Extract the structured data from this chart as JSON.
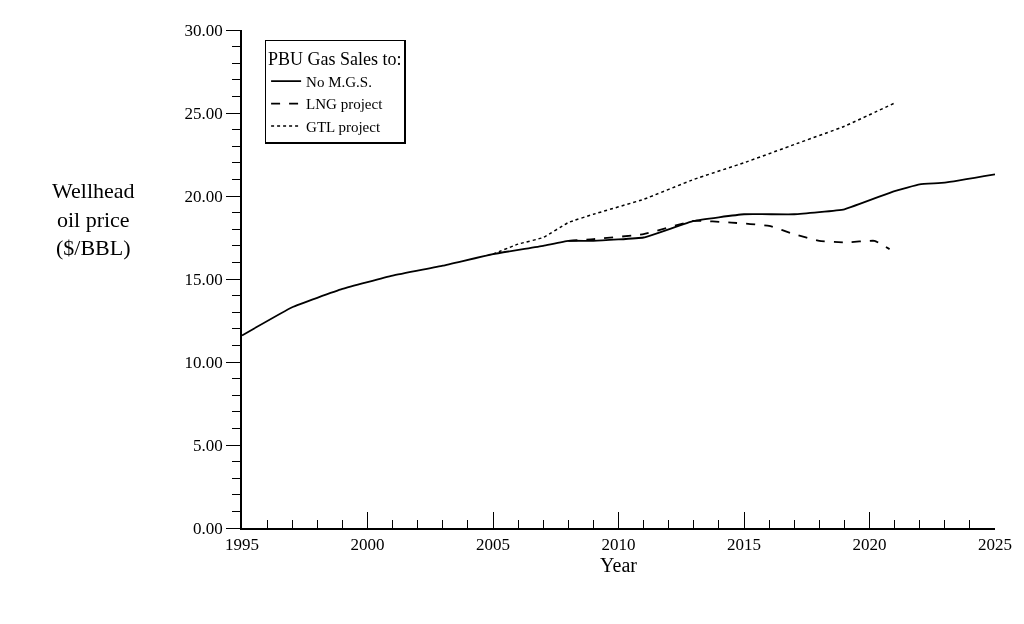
{
  "chart_data": {
    "type": "line",
    "xlabel": "Year",
    "ylabel": "Wellhead\noil price\n($/BBL)",
    "legend_title": "PBU Gas Sales to:",
    "legend": "top left",
    "xlim": [
      1995,
      2025
    ],
    "xticks": [
      1995,
      2000,
      2005,
      2010,
      2015,
      2020,
      2025
    ],
    "ylim": [
      0,
      30
    ],
    "yticks": [
      {
        "value": 0,
        "label": "0.00"
      },
      {
        "value": 5,
        "label": "5.00"
      },
      {
        "value": 10,
        "label": "10.00"
      },
      {
        "value": 15,
        "label": "15.00"
      },
      {
        "value": 20,
        "label": "20.00"
      },
      {
        "value": 25,
        "label": "25.00"
      },
      {
        "value": 30,
        "label": "30.00"
      }
    ],
    "series": [
      {
        "name": "No M.G.S.",
        "color": "#000000",
        "line_style": "solid",
        "x": [
          1995,
          1997,
          1999,
          2001,
          2003,
          2005,
          2007,
          2008,
          2009,
          2011,
          2013,
          2015,
          2017,
          2019,
          2021,
          2022,
          2023,
          2025
        ],
        "values": [
          11.6,
          13.3,
          14.4,
          15.2,
          15.8,
          16.5,
          17.0,
          17.3,
          17.3,
          17.5,
          18.5,
          18.9,
          18.9,
          19.2,
          20.3,
          20.7,
          20.8,
          21.3
        ]
      },
      {
        "name": "LNG project",
        "color": "#000000",
        "line_style": "dashed",
        "x": [
          2008,
          2009,
          2011,
          2013,
          2014.5,
          2016,
          2017,
          2018,
          2019,
          2020.2,
          2020.8
        ],
        "values": [
          17.3,
          17.4,
          17.7,
          18.5,
          18.4,
          18.2,
          17.7,
          17.3,
          17.2,
          17.3,
          16.8
        ]
      },
      {
        "name": "GTL project",
        "color": "#000000",
        "line_style": "dotted",
        "x": [
          2005,
          2006,
          2007,
          2008,
          2009,
          2011,
          2013,
          2015,
          2017,
          2019,
          2021
        ],
        "values": [
          16.5,
          17.1,
          17.5,
          18.4,
          18.9,
          19.8,
          21.0,
          22.0,
          23.1,
          24.2,
          25.6
        ]
      }
    ]
  }
}
